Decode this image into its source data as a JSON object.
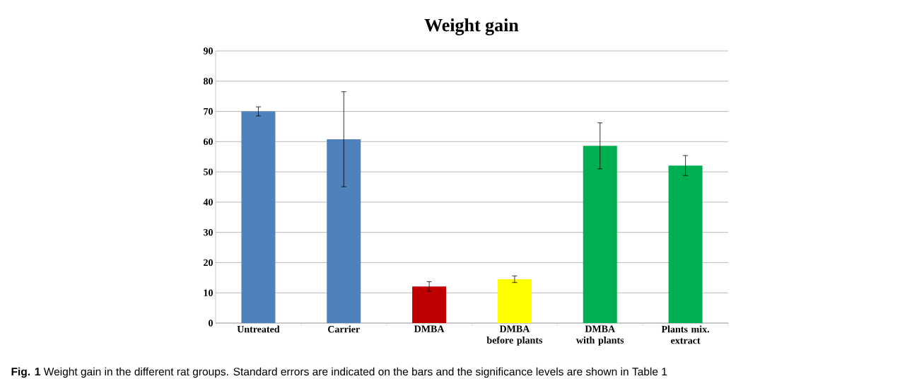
{
  "chart_data": {
    "type": "bar",
    "title": "Weight gain",
    "categories": [
      "Untreated",
      "Carrier",
      "DMBA",
      "DMBA before plants",
      "DMBA with plants",
      "Plants mix. extract"
    ],
    "values": [
      70,
      60.8,
      12.1,
      14.5,
      58.6,
      52.1
    ],
    "errors": [
      1.5,
      15.7,
      1.6,
      1.1,
      7.6,
      3.3
    ],
    "colors": [
      "#4f81bd",
      "#4f81bd",
      "#c00000",
      "#ffff00",
      "#00b050",
      "#00b050"
    ],
    "ylim": [
      0,
      90
    ],
    "yticks": [
      0,
      10,
      20,
      30,
      40,
      50,
      60,
      70,
      80,
      90
    ],
    "grid": "y",
    "annotations": [
      "**Fig. 1** Weight gain in the different rat groups. Standard errors are indicated on the bars and the significance levels are shown in Table 1"
    ]
  }
}
